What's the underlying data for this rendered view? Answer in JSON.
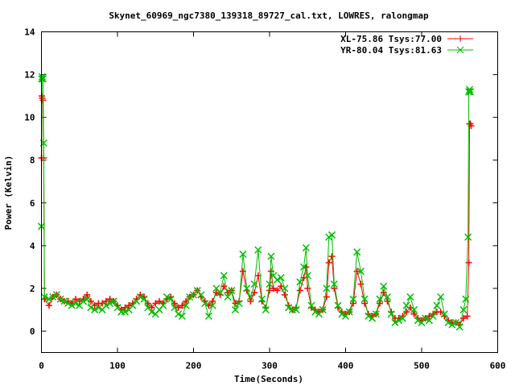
{
  "chart_data": {
    "type": "line",
    "title": "Skynet_60969_ngc7380_139318_89727_cal.txt, LOWRES, ralongmap",
    "xlabel": "Time(Seconds)",
    "ylabel": "Power (Kelvin)",
    "xlim": [
      0,
      600
    ],
    "ylim": [
      -1,
      14
    ],
    "xticks": [
      "0",
      "100",
      "200",
      "300",
      "400",
      "500",
      "600"
    ],
    "yticks": [
      "0",
      "2",
      "4",
      "6",
      "8",
      "10",
      "12",
      "14"
    ],
    "grid": false,
    "legend_position": "top-right",
    "series": [
      {
        "name": "XL-75.86 Tsys:77.00",
        "color": "#ff0000",
        "marker": "plus",
        "points": [
          [
            0,
            8.1
          ],
          [
            0.5,
            11.0
          ],
          [
            1,
            10.9
          ],
          [
            2,
            10.8
          ],
          [
            3,
            8.1
          ],
          [
            4,
            1.5
          ],
          [
            10,
            1.2
          ],
          [
            15,
            1.6
          ],
          [
            20,
            1.7
          ],
          [
            25,
            1.5
          ],
          [
            30,
            1.4
          ],
          [
            35,
            1.4
          ],
          [
            40,
            1.3
          ],
          [
            45,
            1.5
          ],
          [
            50,
            1.4
          ],
          [
            55,
            1.5
          ],
          [
            60,
            1.7
          ],
          [
            65,
            1.4
          ],
          [
            70,
            1.2
          ],
          [
            75,
            1.3
          ],
          [
            80,
            1.3
          ],
          [
            85,
            1.4
          ],
          [
            90,
            1.5
          ],
          [
            95,
            1.4
          ],
          [
            100,
            1.2
          ],
          [
            105,
            1.0
          ],
          [
            110,
            1.1
          ],
          [
            115,
            1.2
          ],
          [
            120,
            1.3
          ],
          [
            125,
            1.5
          ],
          [
            130,
            1.7
          ],
          [
            135,
            1.6
          ],
          [
            140,
            1.3
          ],
          [
            145,
            1.1
          ],
          [
            150,
            1.3
          ],
          [
            155,
            1.4
          ],
          [
            160,
            1.3
          ],
          [
            165,
            1.5
          ],
          [
            170,
            1.6
          ],
          [
            175,
            1.3
          ],
          [
            180,
            1.1
          ],
          [
            185,
            1.2
          ],
          [
            190,
            1.4
          ],
          [
            195,
            1.6
          ],
          [
            200,
            1.7
          ],
          [
            205,
            1.9
          ],
          [
            210,
            1.6
          ],
          [
            215,
            1.4
          ],
          [
            220,
            1.2
          ],
          [
            225,
            1.4
          ],
          [
            230,
            1.8
          ],
          [
            235,
            1.7
          ],
          [
            240,
            2.1
          ],
          [
            245,
            1.8
          ],
          [
            250,
            1.9
          ],
          [
            255,
            1.3
          ],
          [
            260,
            1.4
          ],
          [
            265,
            2.8
          ],
          [
            270,
            1.9
          ],
          [
            275,
            1.4
          ],
          [
            280,
            1.8
          ],
          [
            285,
            2.6
          ],
          [
            290,
            1.4
          ],
          [
            295,
            1.1
          ],
          [
            300,
            1.9
          ],
          [
            302,
            2.8
          ],
          [
            305,
            2.0
          ],
          [
            310,
            1.9
          ],
          [
            315,
            2.1
          ],
          [
            320,
            1.7
          ],
          [
            325,
            1.2
          ],
          [
            330,
            1.0
          ],
          [
            335,
            1.1
          ],
          [
            340,
            1.9
          ],
          [
            345,
            2.5
          ],
          [
            348,
            3.0
          ],
          [
            350,
            2.0
          ],
          [
            355,
            1.1
          ],
          [
            360,
            1.0
          ],
          [
            365,
            0.9
          ],
          [
            370,
            1.0
          ],
          [
            375,
            1.6
          ],
          [
            378,
            3.2
          ],
          [
            382,
            3.5
          ],
          [
            385,
            2.0
          ],
          [
            390,
            1.1
          ],
          [
            395,
            0.9
          ],
          [
            400,
            0.8
          ],
          [
            405,
            0.9
          ],
          [
            410,
            1.3
          ],
          [
            415,
            2.8
          ],
          [
            420,
            2.2
          ],
          [
            425,
            1.3
          ],
          [
            430,
            0.8
          ],
          [
            435,
            0.7
          ],
          [
            440,
            0.8
          ],
          [
            445,
            1.3
          ],
          [
            450,
            1.8
          ],
          [
            455,
            1.4
          ],
          [
            460,
            0.9
          ],
          [
            465,
            0.6
          ],
          [
            470,
            0.6
          ],
          [
            475,
            0.7
          ],
          [
            480,
            0.9
          ],
          [
            485,
            1.1
          ],
          [
            490,
            0.8
          ],
          [
            495,
            0.6
          ],
          [
            500,
            0.5
          ],
          [
            505,
            0.6
          ],
          [
            510,
            0.7
          ],
          [
            515,
            0.8
          ],
          [
            520,
            0.9
          ],
          [
            525,
            0.9
          ],
          [
            530,
            0.7
          ],
          [
            535,
            0.5
          ],
          [
            540,
            0.4
          ],
          [
            545,
            0.4
          ],
          [
            550,
            0.3
          ],
          [
            555,
            0.6
          ],
          [
            560,
            0.7
          ],
          [
            562,
            3.2
          ],
          [
            563,
            9.7
          ],
          [
            564,
            9.7
          ],
          [
            565,
            9.6
          ]
        ]
      },
      {
        "name": "YR-80.04 Tsys:81.63",
        "color": "#00c000",
        "marker": "cross",
        "points": [
          [
            0,
            4.9
          ],
          [
            0.5,
            11.8
          ],
          [
            1,
            11.9
          ],
          [
            2,
            11.8
          ],
          [
            3,
            8.8
          ],
          [
            4,
            1.6
          ],
          [
            10,
            1.5
          ],
          [
            15,
            1.6
          ],
          [
            20,
            1.7
          ],
          [
            25,
            1.5
          ],
          [
            30,
            1.4
          ],
          [
            35,
            1.3
          ],
          [
            40,
            1.2
          ],
          [
            45,
            1.3
          ],
          [
            50,
            1.2
          ],
          [
            55,
            1.4
          ],
          [
            60,
            1.5
          ],
          [
            65,
            1.1
          ],
          [
            70,
            1.0
          ],
          [
            75,
            1.1
          ],
          [
            80,
            1.0
          ],
          [
            85,
            1.2
          ],
          [
            90,
            1.3
          ],
          [
            95,
            1.4
          ],
          [
            100,
            1.1
          ],
          [
            105,
            0.9
          ],
          [
            110,
            0.9
          ],
          [
            115,
            1.0
          ],
          [
            120,
            1.2
          ],
          [
            125,
            1.4
          ],
          [
            130,
            1.6
          ],
          [
            135,
            1.5
          ],
          [
            140,
            1.1
          ],
          [
            145,
            0.9
          ],
          [
            150,
            0.8
          ],
          [
            155,
            1.0
          ],
          [
            160,
            1.2
          ],
          [
            165,
            1.6
          ],
          [
            170,
            1.5
          ],
          [
            175,
            1.1
          ],
          [
            180,
            0.8
          ],
          [
            185,
            0.7
          ],
          [
            190,
            1.2
          ],
          [
            195,
            1.6
          ],
          [
            200,
            1.7
          ],
          [
            205,
            1.9
          ],
          [
            210,
            1.7
          ],
          [
            215,
            1.3
          ],
          [
            220,
            0.7
          ],
          [
            225,
            1.2
          ],
          [
            230,
            2.0
          ],
          [
            235,
            1.8
          ],
          [
            240,
            2.6
          ],
          [
            245,
            1.6
          ],
          [
            250,
            1.9
          ],
          [
            255,
            1.0
          ],
          [
            260,
            1.3
          ],
          [
            265,
            3.6
          ],
          [
            270,
            2.0
          ],
          [
            275,
            1.6
          ],
          [
            280,
            2.2
          ],
          [
            285,
            3.8
          ],
          [
            290,
            1.5
          ],
          [
            295,
            1.0
          ],
          [
            300,
            2.2
          ],
          [
            302,
            3.5
          ],
          [
            305,
            2.6
          ],
          [
            310,
            2.4
          ],
          [
            315,
            2.5
          ],
          [
            320,
            2.0
          ],
          [
            325,
            1.1
          ],
          [
            330,
            1.0
          ],
          [
            335,
            1.0
          ],
          [
            340,
            2.3
          ],
          [
            345,
            3.0
          ],
          [
            348,
            3.9
          ],
          [
            350,
            2.6
          ],
          [
            355,
            1.2
          ],
          [
            360,
            0.9
          ],
          [
            365,
            0.8
          ],
          [
            370,
            1.0
          ],
          [
            375,
            2.0
          ],
          [
            378,
            4.4
          ],
          [
            382,
            4.5
          ],
          [
            385,
            2.2
          ],
          [
            390,
            1.2
          ],
          [
            395,
            0.8
          ],
          [
            400,
            0.7
          ],
          [
            405,
            0.9
          ],
          [
            410,
            1.5
          ],
          [
            415,
            3.7
          ],
          [
            420,
            2.8
          ],
          [
            425,
            1.5
          ],
          [
            430,
            0.7
          ],
          [
            435,
            0.6
          ],
          [
            440,
            0.8
          ],
          [
            445,
            1.5
          ],
          [
            450,
            2.1
          ],
          [
            455,
            1.6
          ],
          [
            460,
            0.8
          ],
          [
            465,
            0.4
          ],
          [
            470,
            0.5
          ],
          [
            475,
            0.6
          ],
          [
            480,
            1.2
          ],
          [
            485,
            1.6
          ],
          [
            490,
            1.0
          ],
          [
            495,
            0.5
          ],
          [
            500,
            0.4
          ],
          [
            505,
            0.6
          ],
          [
            510,
            0.5
          ],
          [
            515,
            0.7
          ],
          [
            520,
            1.2
          ],
          [
            525,
            1.6
          ],
          [
            530,
            0.8
          ],
          [
            535,
            0.4
          ],
          [
            540,
            0.3
          ],
          [
            545,
            0.4
          ],
          [
            550,
            0.2
          ],
          [
            555,
            1.0
          ],
          [
            558,
            1.5
          ],
          [
            561,
            4.4
          ],
          [
            562,
            11.2
          ],
          [
            563,
            11.3
          ],
          [
            564,
            11.2
          ]
        ]
      }
    ]
  }
}
